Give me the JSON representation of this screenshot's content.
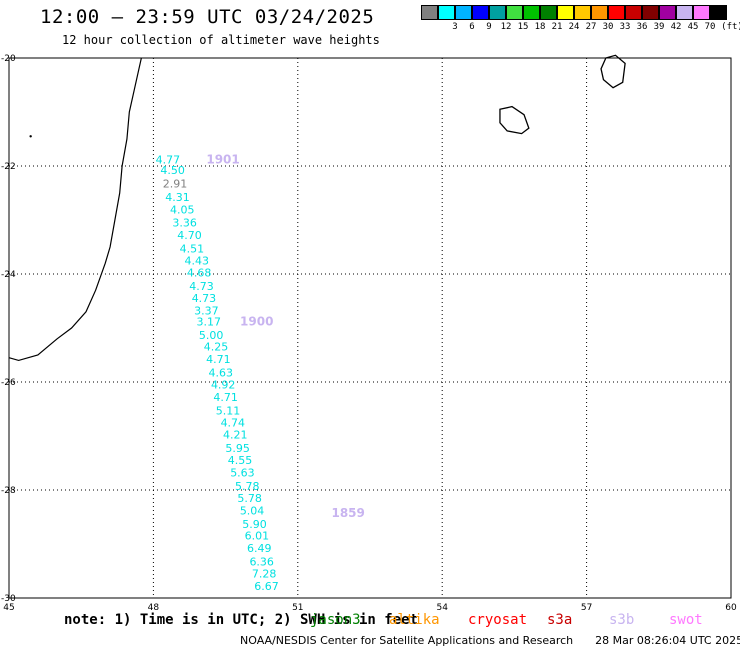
{
  "header": {
    "title": "12:00 – 23:59 UTC 03/24/2025",
    "subtitle": "12 hour collection of altimeter wave heights"
  },
  "legend": {
    "unit": "(ft)",
    "items": [
      {
        "label": "",
        "color": "#808080"
      },
      {
        "label": "3",
        "color": "#00ffff"
      },
      {
        "label": "6",
        "color": "#00b4ff"
      },
      {
        "label": "9",
        "color": "#0000ff"
      },
      {
        "label": "12",
        "color": "#00a0a0"
      },
      {
        "label": "15",
        "color": "#40e040"
      },
      {
        "label": "18",
        "color": "#00c000"
      },
      {
        "label": "21",
        "color": "#008000"
      },
      {
        "label": "24",
        "color": "#ffff00"
      },
      {
        "label": "27",
        "color": "#ffc800"
      },
      {
        "label": "30",
        "color": "#ff9600"
      },
      {
        "label": "33",
        "color": "#ff0000"
      },
      {
        "label": "36",
        "color": "#c80000"
      },
      {
        "label": "39",
        "color": "#800000"
      },
      {
        "label": "42",
        "color": "#a000a0"
      },
      {
        "label": "45",
        "color": "#c8b4f0"
      },
      {
        "label": "70",
        "color": "#ff78ff"
      },
      {
        "label": "",
        "color": "#000000"
      }
    ]
  },
  "map": {
    "lon_range": [
      45,
      60
    ],
    "lat_range": [
      -30,
      -20
    ],
    "lon_ticks": [
      "45",
      "48",
      "51",
      "54",
      "57",
      "60"
    ],
    "lat_ticks": [
      "-20",
      "-22",
      "-24",
      "-26",
      "-28",
      "-30"
    ],
    "track_labels": [
      {
        "text": "1901",
        "lon": 49.1,
        "lat": -21.95
      },
      {
        "text": "1900",
        "lon": 49.8,
        "lat": -24.95
      },
      {
        "text": "1859",
        "lon": 51.7,
        "lat": -28.5
      }
    ],
    "observations": [
      {
        "value": "4.77",
        "lon": 48.3,
        "lat": -21.95,
        "color": "#00e0e0"
      },
      {
        "value": "4.50",
        "lon": 48.4,
        "lat": -22.15,
        "color": "#00e0e0"
      },
      {
        "value": "2.91",
        "lon": 48.45,
        "lat": -22.4,
        "color": "#808080"
      },
      {
        "value": "4.31",
        "lon": 48.5,
        "lat": -22.65,
        "color": "#00e0e0"
      },
      {
        "value": "4.05",
        "lon": 48.6,
        "lat": -22.88,
        "color": "#00e0e0"
      },
      {
        "value": "3.36",
        "lon": 48.65,
        "lat": -23.12,
        "color": "#00e0e0"
      },
      {
        "value": "4.70",
        "lon": 48.75,
        "lat": -23.35,
        "color": "#00e0e0"
      },
      {
        "value": "4.51",
        "lon": 48.8,
        "lat": -23.6,
        "color": "#00e0e0"
      },
      {
        "value": "4.43",
        "lon": 48.9,
        "lat": -23.82,
        "color": "#00e0e0"
      },
      {
        "value": "4.68",
        "lon": 48.95,
        "lat": -24.05,
        "color": "#00e0e0"
      },
      {
        "value": "4.73",
        "lon": 49.0,
        "lat": -24.3,
        "color": "#00e0e0"
      },
      {
        "value": "4.73",
        "lon": 49.05,
        "lat": -24.52,
        "color": "#00e0e0"
      },
      {
        "value": "3.37",
        "lon": 49.1,
        "lat": -24.75,
        "color": "#00e0e0"
      },
      {
        "value": "3.17",
        "lon": 49.15,
        "lat": -24.95,
        "color": "#00e0e0"
      },
      {
        "value": "5.00",
        "lon": 49.2,
        "lat": -25.2,
        "color": "#00e0e0"
      },
      {
        "value": "4.25",
        "lon": 49.3,
        "lat": -25.42,
        "color": "#00e0e0"
      },
      {
        "value": "4.71",
        "lon": 49.35,
        "lat": -25.65,
        "color": "#00e0e0"
      },
      {
        "value": "4.63",
        "lon": 49.4,
        "lat": -25.9,
        "color": "#00e0e0"
      },
      {
        "value": "4.92",
        "lon": 49.45,
        "lat": -26.12,
        "color": "#00e0e0"
      },
      {
        "value": "4.71",
        "lon": 49.5,
        "lat": -26.35,
        "color": "#00e0e0"
      },
      {
        "value": "5.11",
        "lon": 49.55,
        "lat": -26.6,
        "color": "#00e0e0"
      },
      {
        "value": "4.74",
        "lon": 49.65,
        "lat": -26.82,
        "color": "#00e0e0"
      },
      {
        "value": "4.21",
        "lon": 49.7,
        "lat": -27.05,
        "color": "#00e0e0"
      },
      {
        "value": "5.95",
        "lon": 49.75,
        "lat": -27.3,
        "color": "#00e0e0"
      },
      {
        "value": "4.55",
        "lon": 49.8,
        "lat": -27.52,
        "color": "#00e0e0"
      },
      {
        "value": "5.63",
        "lon": 49.85,
        "lat": -27.75,
        "color": "#00e0e0"
      },
      {
        "value": "5.78",
        "lon": 49.95,
        "lat": -28.0,
        "color": "#00e0e0"
      },
      {
        "value": "5.78",
        "lon": 50.0,
        "lat": -28.22,
        "color": "#00e0e0"
      },
      {
        "value": "5.04",
        "lon": 50.05,
        "lat": -28.45,
        "color": "#00e0e0"
      },
      {
        "value": "5.90",
        "lon": 50.1,
        "lat": -28.7,
        "color": "#00e0e0"
      },
      {
        "value": "6.01",
        "lon": 50.15,
        "lat": -28.92,
        "color": "#00e0e0"
      },
      {
        "value": "6.49",
        "lon": 50.2,
        "lat": -29.15,
        "color": "#00e0e0"
      },
      {
        "value": "6.36",
        "lon": 50.25,
        "lat": -29.4,
        "color": "#00e0e0"
      },
      {
        "value": "7.28",
        "lon": 50.3,
        "lat": -29.62,
        "color": "#00e0e0"
      },
      {
        "value": "6.67",
        "lon": 50.35,
        "lat": -29.85,
        "color": "#00e0e0"
      }
    ]
  },
  "note": "note: 1) Time is in UTC; 2) SWH is in feet",
  "missions": [
    {
      "name": "jason3",
      "color": "#008000"
    },
    {
      "name": "altika",
      "color": "#ff9600"
    },
    {
      "name": "cryosat",
      "color": "#ff0000"
    },
    {
      "name": "s3a",
      "color": "#c80000"
    },
    {
      "name": "s3b",
      "color": "#c8b4f0"
    },
    {
      "name": "swot",
      "color": "#ff78ff"
    }
  ],
  "footer": {
    "credit": "NOAA/NESDIS Center for Satellite Applications and Research",
    "timestamp": "28 Mar 08:26:04 UTC 2025"
  }
}
